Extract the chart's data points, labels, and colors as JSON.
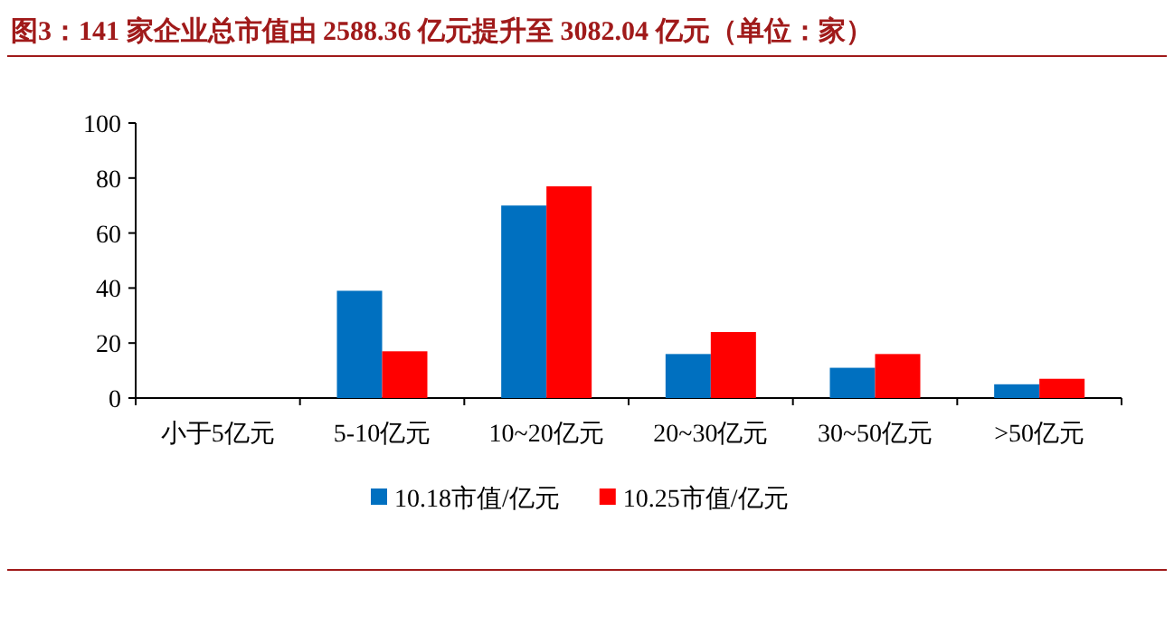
{
  "chart_data": {
    "type": "bar",
    "title": "图3：141 家企业总市值由 2588.36 亿元提升至 3082.04 亿元（单位：家）",
    "categories": [
      "小于5亿元",
      "5-10亿元",
      "10~20亿元",
      "20~30亿元",
      "30~50亿元",
      ">50亿元"
    ],
    "series": [
      {
        "name": "10.18市值/亿元",
        "color": "#0070c0",
        "values": [
          0,
          39,
          70,
          16,
          11,
          5
        ]
      },
      {
        "name": "10.25市值/亿元",
        "color": "#ff0000",
        "values": [
          0,
          17,
          77,
          24,
          16,
          7
        ]
      }
    ],
    "ylim": [
      0,
      100
    ],
    "yticks": [
      0,
      20,
      40,
      60,
      80,
      100
    ],
    "grid": false,
    "legend": "bottom"
  }
}
